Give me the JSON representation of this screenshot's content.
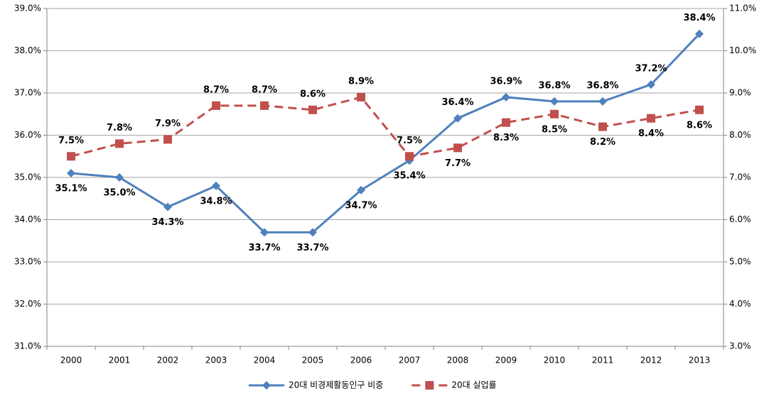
{
  "chart_data": {
    "type": "line",
    "categories": [
      "2000",
      "2001",
      "2002",
      "2003",
      "2004",
      "2005",
      "2006",
      "2007",
      "2008",
      "2009",
      "2010",
      "2011",
      "2012",
      "2013"
    ],
    "series": [
      {
        "name": "20대 비경제활동인구 비중",
        "color": "#4f81bd",
        "dashed": false,
        "marker": "diamond",
        "values": [
          35.1,
          35.0,
          34.3,
          34.8,
          33.7,
          33.7,
          34.7,
          35.4,
          36.4,
          36.9,
          36.8,
          36.8,
          37.2,
          38.4
        ],
        "value_labels": [
          "35.1%",
          "35.0%",
          "34.3%",
          "34.8%",
          "33.7%",
          "33.7%",
          "34.7%",
          "35.4%",
          "36.4%",
          "36.9%",
          "36.8%",
          "36.8%",
          "37.2%",
          "38.4%"
        ]
      },
      {
        "name": "20대 실업률",
        "color": "#c0504d",
        "dashed": true,
        "marker": "square",
        "axis": "y2",
        "values": [
          7.5,
          7.8,
          7.9,
          8.7,
          8.7,
          8.6,
          8.9,
          7.5,
          7.7,
          8.3,
          8.5,
          8.2,
          8.4,
          8.6
        ],
        "value_labels": [
          "7.5%",
          "7.8%",
          "7.9%",
          "8.7%",
          "8.7%",
          "8.6%",
          "8.9%",
          "7.5%",
          "7.7%",
          "8.3%",
          "8.5%",
          "8.2%",
          "8.4%",
          "8.6%"
        ]
      }
    ],
    "ylim": [
      31,
      39
    ],
    "yticks": [
      {
        "value": 31,
        "label": "31.0%"
      },
      {
        "value": 32,
        "label": "32.0%"
      },
      {
        "value": 33,
        "label": "33.0%"
      },
      {
        "value": 34,
        "label": "34.0%"
      },
      {
        "value": 35,
        "label": "35.0%"
      },
      {
        "value": 36,
        "label": "36.0%"
      },
      {
        "value": 37,
        "label": "37.0%"
      },
      {
        "value": 38,
        "label": "38.0%"
      },
      {
        "value": 39,
        "label": "39.0%"
      }
    ],
    "y2lim": [
      3,
      11
    ],
    "y2ticks": [
      {
        "value": 3,
        "label": "3.0%"
      },
      {
        "value": 4,
        "label": "4.0%"
      },
      {
        "value": 5,
        "label": "5.0%"
      },
      {
        "value": 6,
        "label": "6.0%"
      },
      {
        "value": 7,
        "label": "7.0%"
      },
      {
        "value": 8,
        "label": "8.0%"
      },
      {
        "value": 9,
        "label": "9.0%"
      },
      {
        "value": 10,
        "label": "10.0%"
      },
      {
        "value": 11,
        "label": "11.0%"
      }
    ],
    "grid": true,
    "legend": "bottom"
  }
}
